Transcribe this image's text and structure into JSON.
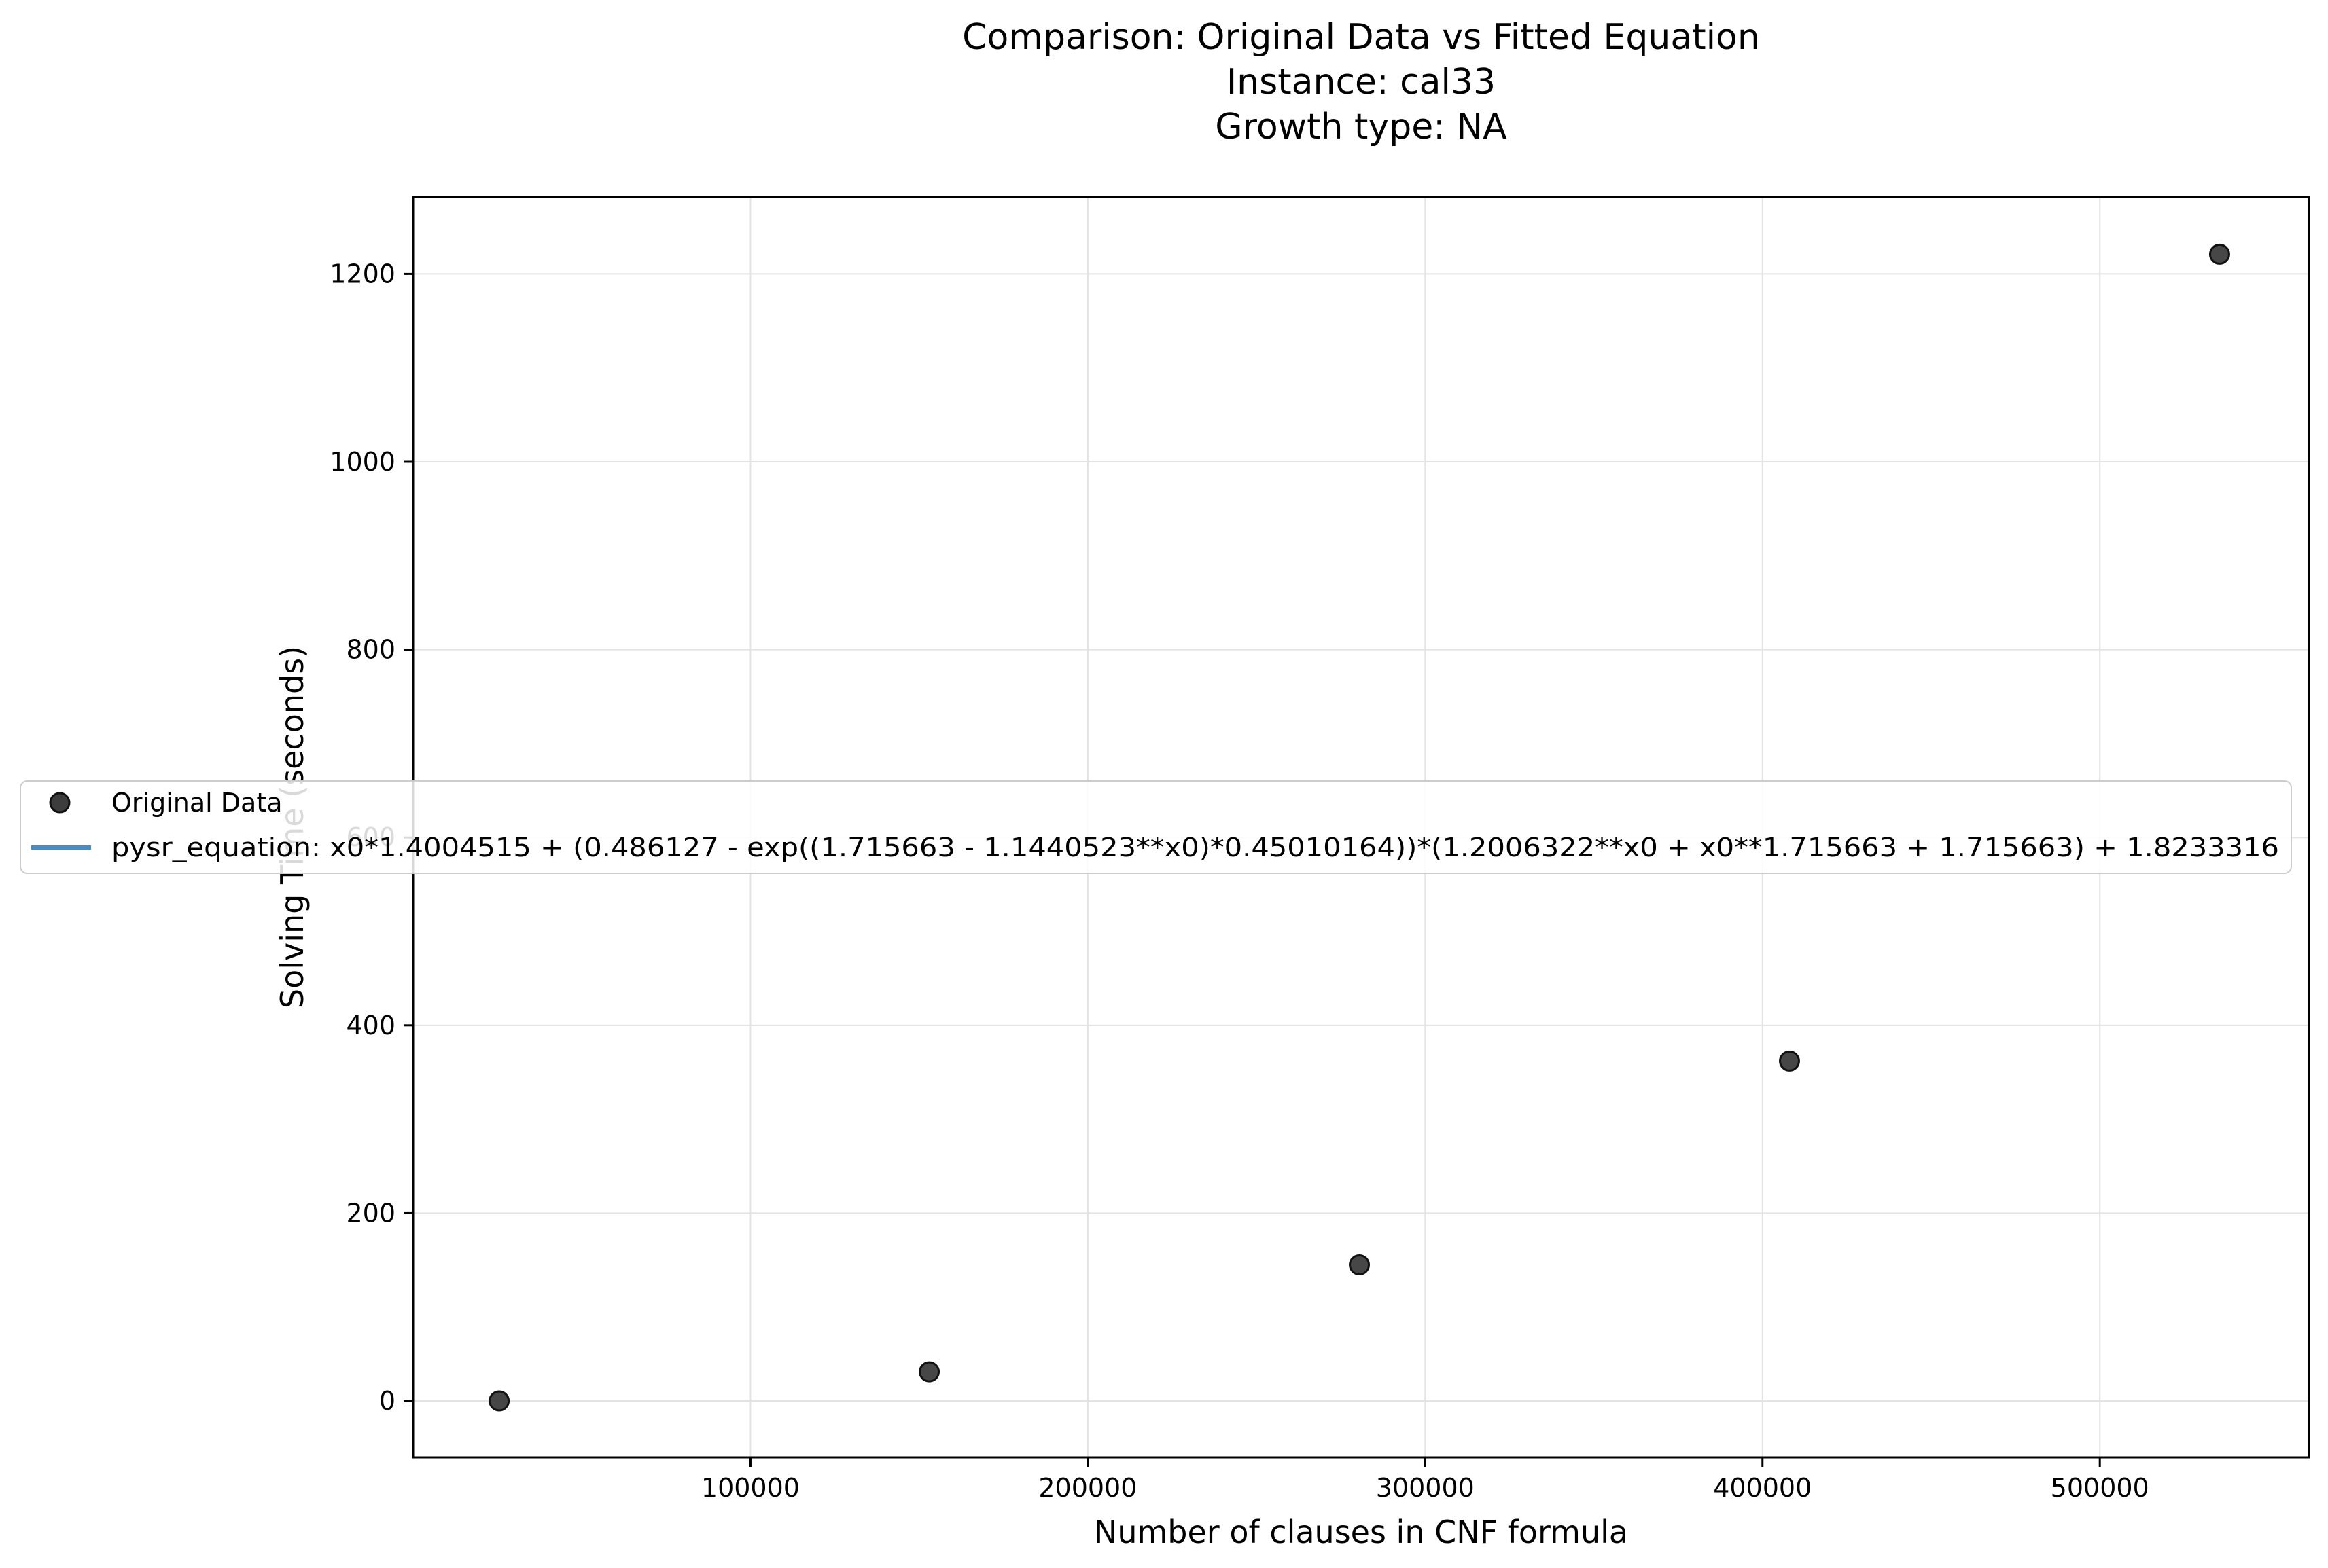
{
  "chart_data": {
    "type": "scatter",
    "title_lines": [
      "Comparison: Original Data vs Fitted Equation",
      "Instance: cal33",
      "Growth type: NA"
    ],
    "xlabel": "Number of clauses in CNF formula",
    "ylabel": "Solving Time (seconds)",
    "xlim": [
      0,
      562000
    ],
    "ylim": [
      -60,
      1282
    ],
    "x_ticks": [
      100000,
      200000,
      300000,
      400000,
      500000
    ],
    "x_tick_labels": [
      "100000",
      "200000",
      "300000",
      "400000",
      "500000"
    ],
    "y_ticks": [
      0,
      200,
      400,
      600,
      800,
      1000,
      1200
    ],
    "y_tick_labels": [
      "0",
      "200",
      "400",
      "600",
      "800",
      "1000",
      "1200"
    ],
    "grid": true,
    "legend_position": "center-left",
    "series": [
      {
        "name": "Original Data",
        "kind": "scatter",
        "color": "#3d3d3d",
        "x": [
          25500,
          153000,
          280500,
          408000,
          535500
        ],
        "y": [
          0,
          31,
          145,
          362,
          1221
        ]
      },
      {
        "name": "pysr_equation: x0*1.4004515 + (0.486127 - exp((1.715663 - 1.1440523**x0)*0.45010164))*(1.2006322**x0 + x0**1.715663 + 1.715663) + 1.8233316",
        "kind": "line",
        "color": "#4a8bc2"
      }
    ]
  }
}
